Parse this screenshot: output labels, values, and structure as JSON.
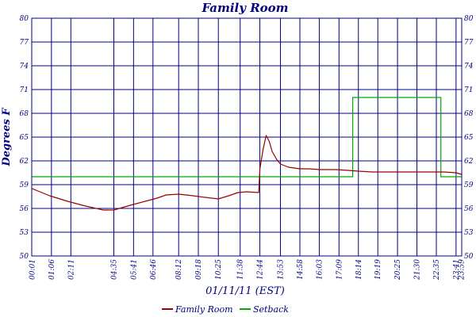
{
  "chart_data": {
    "type": "line",
    "title": "Family Room",
    "xlabel": "01/11/11 (EST)",
    "ylabel": "Degrees F",
    "ylim": [
      50,
      80
    ],
    "yticks": [
      50,
      53,
      56,
      59,
      62,
      65,
      68,
      71,
      74,
      77,
      80
    ],
    "xlim_hours": [
      0,
      24
    ],
    "x_tick_labels": [
      "00:01",
      "01:06",
      "02:11",
      "04:35",
      "05:41",
      "06:46",
      "08:12",
      "09:18",
      "10:25",
      "11:38",
      "12:44",
      "13:53",
      "14:58",
      "16:03",
      "17:09",
      "18:14",
      "19:19",
      "20:25",
      "21:30",
      "22:35",
      "23:41",
      "23:59"
    ],
    "grid": true,
    "legend_position": "bottom",
    "series": [
      {
        "name": "Family Room",
        "color": "#990000",
        "x": [
          "00:01",
          "01:00",
          "02:00",
          "03:00",
          "04:00",
          "04:35",
          "05:30",
          "06:30",
          "07:00",
          "07:30",
          "08:12",
          "09:00",
          "09:40",
          "10:25",
          "11:00",
          "11:30",
          "12:00",
          "12:40",
          "12:44",
          "12:55",
          "13:05",
          "13:15",
          "13:25",
          "13:40",
          "13:53",
          "14:20",
          "14:58",
          "15:30",
          "16:03",
          "16:40",
          "17:00",
          "17:40",
          "18:14",
          "19:00",
          "19:19",
          "20:25",
          "21:30",
          "22:35",
          "23:00",
          "23:41",
          "23:59"
        ],
        "y": [
          58.5,
          57.6,
          56.9,
          56.3,
          55.8,
          55.8,
          56.4,
          57.0,
          57.3,
          57.7,
          57.8,
          57.6,
          57.4,
          57.2,
          57.6,
          58.0,
          58.1,
          58.0,
          61.0,
          63.5,
          65.2,
          64.5,
          63.2,
          62.2,
          61.6,
          61.2,
          61.0,
          61.0,
          60.9,
          60.9,
          60.9,
          60.8,
          60.7,
          60.6,
          60.6,
          60.6,
          60.6,
          60.6,
          60.6,
          60.5,
          60.3
        ]
      },
      {
        "name": "Setback",
        "color": "#00aa00",
        "x": [
          "00:01",
          "17:55",
          "17:55",
          "22:50",
          "22:50",
          "23:59"
        ],
        "y": [
          60,
          60,
          70,
          70,
          60,
          60
        ]
      }
    ]
  }
}
